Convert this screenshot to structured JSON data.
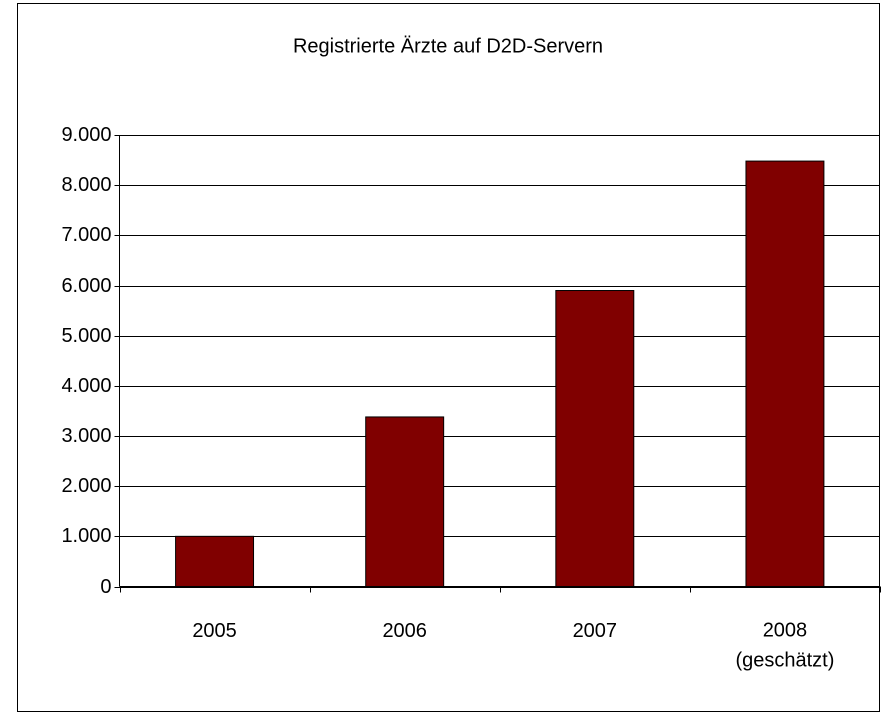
{
  "chart_data": {
    "type": "bar",
    "title": "Registrierte Ärzte auf D2D-Servern",
    "categories": [
      "2005",
      "2006",
      "2007",
      "2008\n(geschätzt)"
    ],
    "values": [
      1000,
      3380,
      5900,
      8480
    ],
    "color": "#800000",
    "ylim": [
      0,
      9000
    ],
    "yticks": [
      0,
      {
        "value": 1000,
        "label": "1.000"
      },
      {
        "value": 2000,
        "label": "2.000"
      },
      {
        "value": 3000,
        "label": "3.000"
      },
      {
        "value": 4000,
        "label": "4.000"
      },
      {
        "value": 5000,
        "label": "5.000"
      },
      {
        "value": 6000,
        "label": "6.000"
      },
      {
        "value": 7000,
        "label": "7.000"
      },
      {
        "value": 8000,
        "label": "8.000"
      },
      {
        "value": 9000,
        "label": "9.000"
      }
    ],
    "grid": true
  }
}
